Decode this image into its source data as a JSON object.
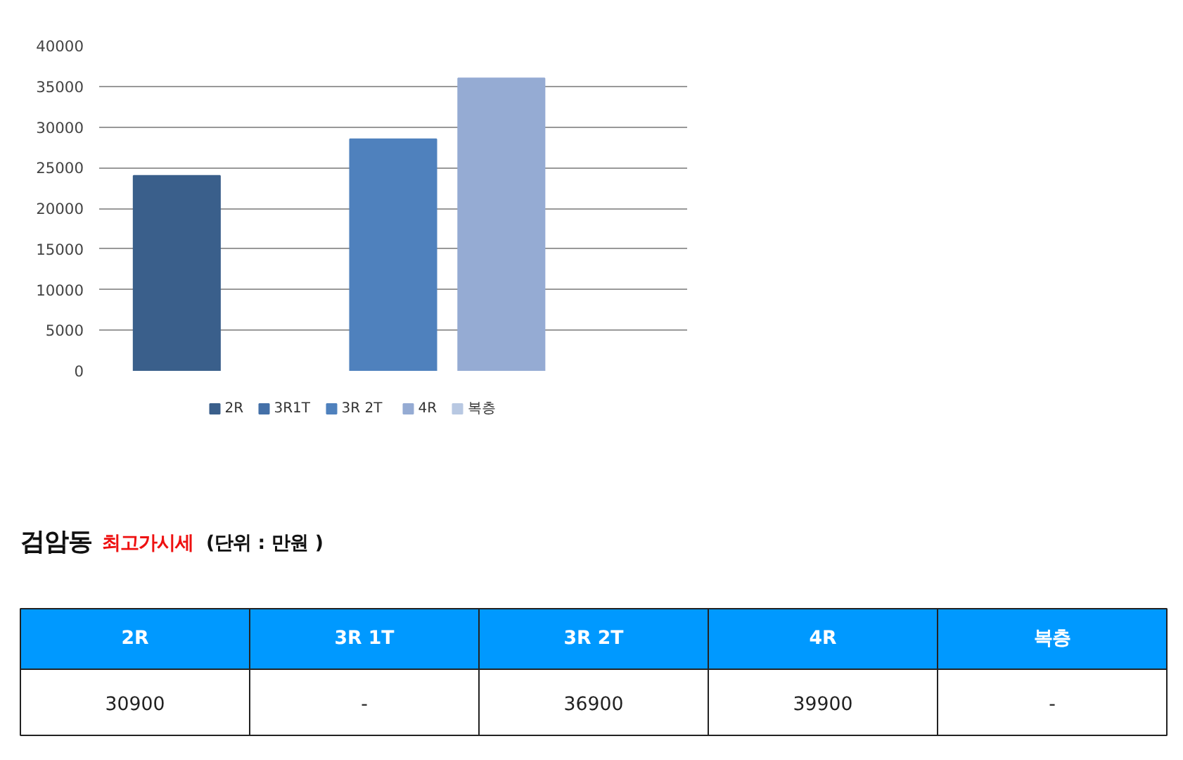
{
  "chart_data": [
    {
      "type": "bar",
      "categories": [
        null
      ],
      "series": [
        {
          "name": "2R",
          "color": "#3a5f8b",
          "values": [
            24000
          ]
        },
        {
          "name": "3R1T",
          "color": "#4470a8",
          "values": [
            null
          ]
        },
        {
          "name": "3R 2T",
          "color": "#4f81bd",
          "values": [
            28500
          ]
        },
        {
          "name": "4R",
          "color": "#95abd3",
          "values": [
            36000
          ]
        },
        {
          "name": "복층",
          "color": "#b8c8e2",
          "values": [
            null
          ]
        }
      ],
      "ylim": [
        0,
        40000
      ],
      "yticks": [
        0,
        5000,
        10000,
        15000,
        20000,
        25000,
        30000,
        35000,
        40000
      ],
      "grid": "y",
      "legend": "bottom"
    },
    {
      "type": "other",
      "title": "검암동",
      "subtitle": "최고가시세",
      "annotations": [
        "(단위 : 만원 )"
      ],
      "categories": [
        "2R",
        "3R 1T",
        "3R 2T",
        "4R",
        "복층"
      ],
      "value_labels": [
        "30900",
        "-",
        "36900",
        "39900",
        "-"
      ],
      "color": "#0099ff"
    }
  ]
}
